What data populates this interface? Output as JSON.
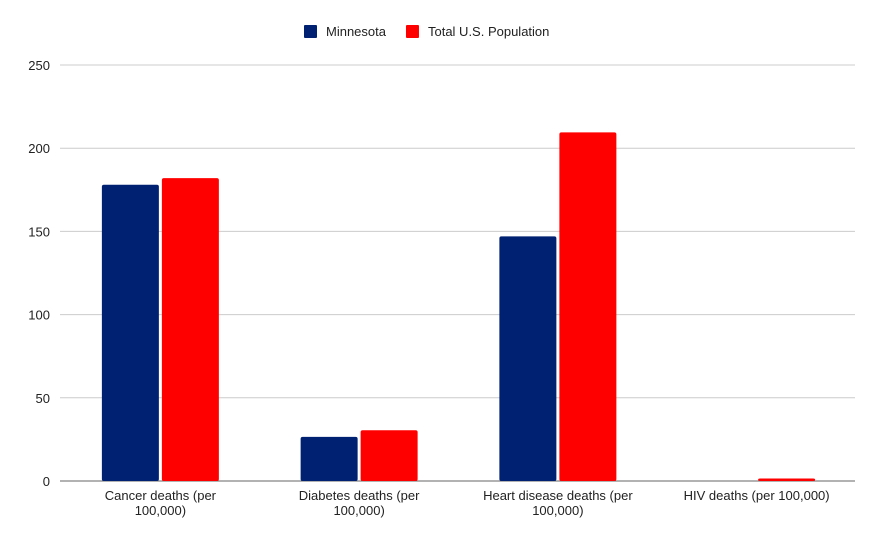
{
  "chart_data": {
    "type": "bar",
    "title": "",
    "xlabel": "",
    "ylabel": "",
    "categories": [
      [
        "Cancer deaths (per",
        "100,000)"
      ],
      [
        "Diabetes deaths (per",
        "100,000)"
      ],
      [
        "Heart disease deaths (per",
        "100,000)"
      ],
      [
        "HIV deaths (per 100,000)"
      ]
    ],
    "series": [
      {
        "name": "Minnesota",
        "color": "#002072",
        "values": [
          178,
          26.5,
          147,
          0
        ]
      },
      {
        "name": "Total U.S. Population",
        "color": "#ff0000",
        "values": [
          182,
          30.5,
          209.5,
          1.5
        ]
      }
    ],
    "ylim": [
      0,
      250
    ],
    "yticks": [
      0,
      50,
      100,
      150,
      200,
      250
    ],
    "grid": true,
    "legend": "top"
  }
}
